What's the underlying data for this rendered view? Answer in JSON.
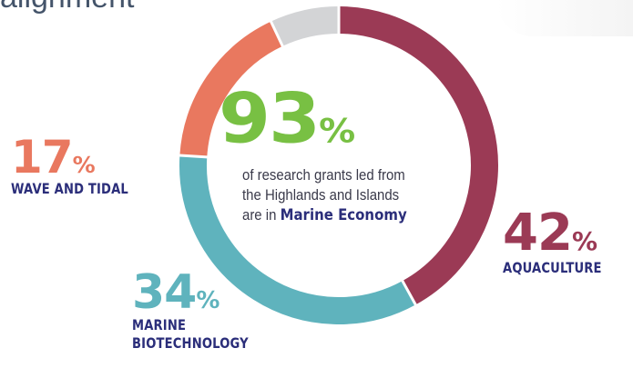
{
  "header": {
    "title_fragment": "alignment"
  },
  "center": {
    "value": "93",
    "unit": "%",
    "line1": "of research grants led from",
    "line2": "the Highlands and Islands",
    "line3_prefix": "are in ",
    "line3_bold": "Marine Economy"
  },
  "colors": {
    "aquaculture": "#9b3a55",
    "marine_biotechnology": "#5fb3bd",
    "wave_and_tidal": "#e9785f",
    "other": "#d3d4d6",
    "center_value": "#78c043",
    "label_text": "#2b2e7a"
  },
  "chart_data": {
    "type": "pie",
    "style": "donut",
    "slices": [
      {
        "label": "AQUACULTURE",
        "value": 42,
        "display": "42",
        "unit": "%",
        "color": "#9b3a55"
      },
      {
        "label": "MARINE BIOTECHNOLOGY",
        "value": 34,
        "display": "34",
        "unit": "%",
        "color": "#5fb3bd"
      },
      {
        "label": "WAVE AND TIDAL",
        "value": 17,
        "display": "17",
        "unit": "%",
        "color": "#e9785f"
      },
      {
        "label": "",
        "value": 7,
        "display": "",
        "unit": "",
        "color": "#d3d4d6"
      }
    ],
    "labels": {
      "aquaculture": {
        "value": "42",
        "unit": "%",
        "name_lines": [
          "AQUACULTURE"
        ]
      },
      "marine_biotechnology": {
        "value": "34",
        "unit": "%",
        "name_lines": [
          "MARINE",
          "BIOTECHNOLOGY"
        ]
      },
      "wave_and_tidal": {
        "value": "17",
        "unit": "%",
        "name_lines": [
          "WAVE AND TIDAL"
        ]
      }
    },
    "center_value": 93
  }
}
